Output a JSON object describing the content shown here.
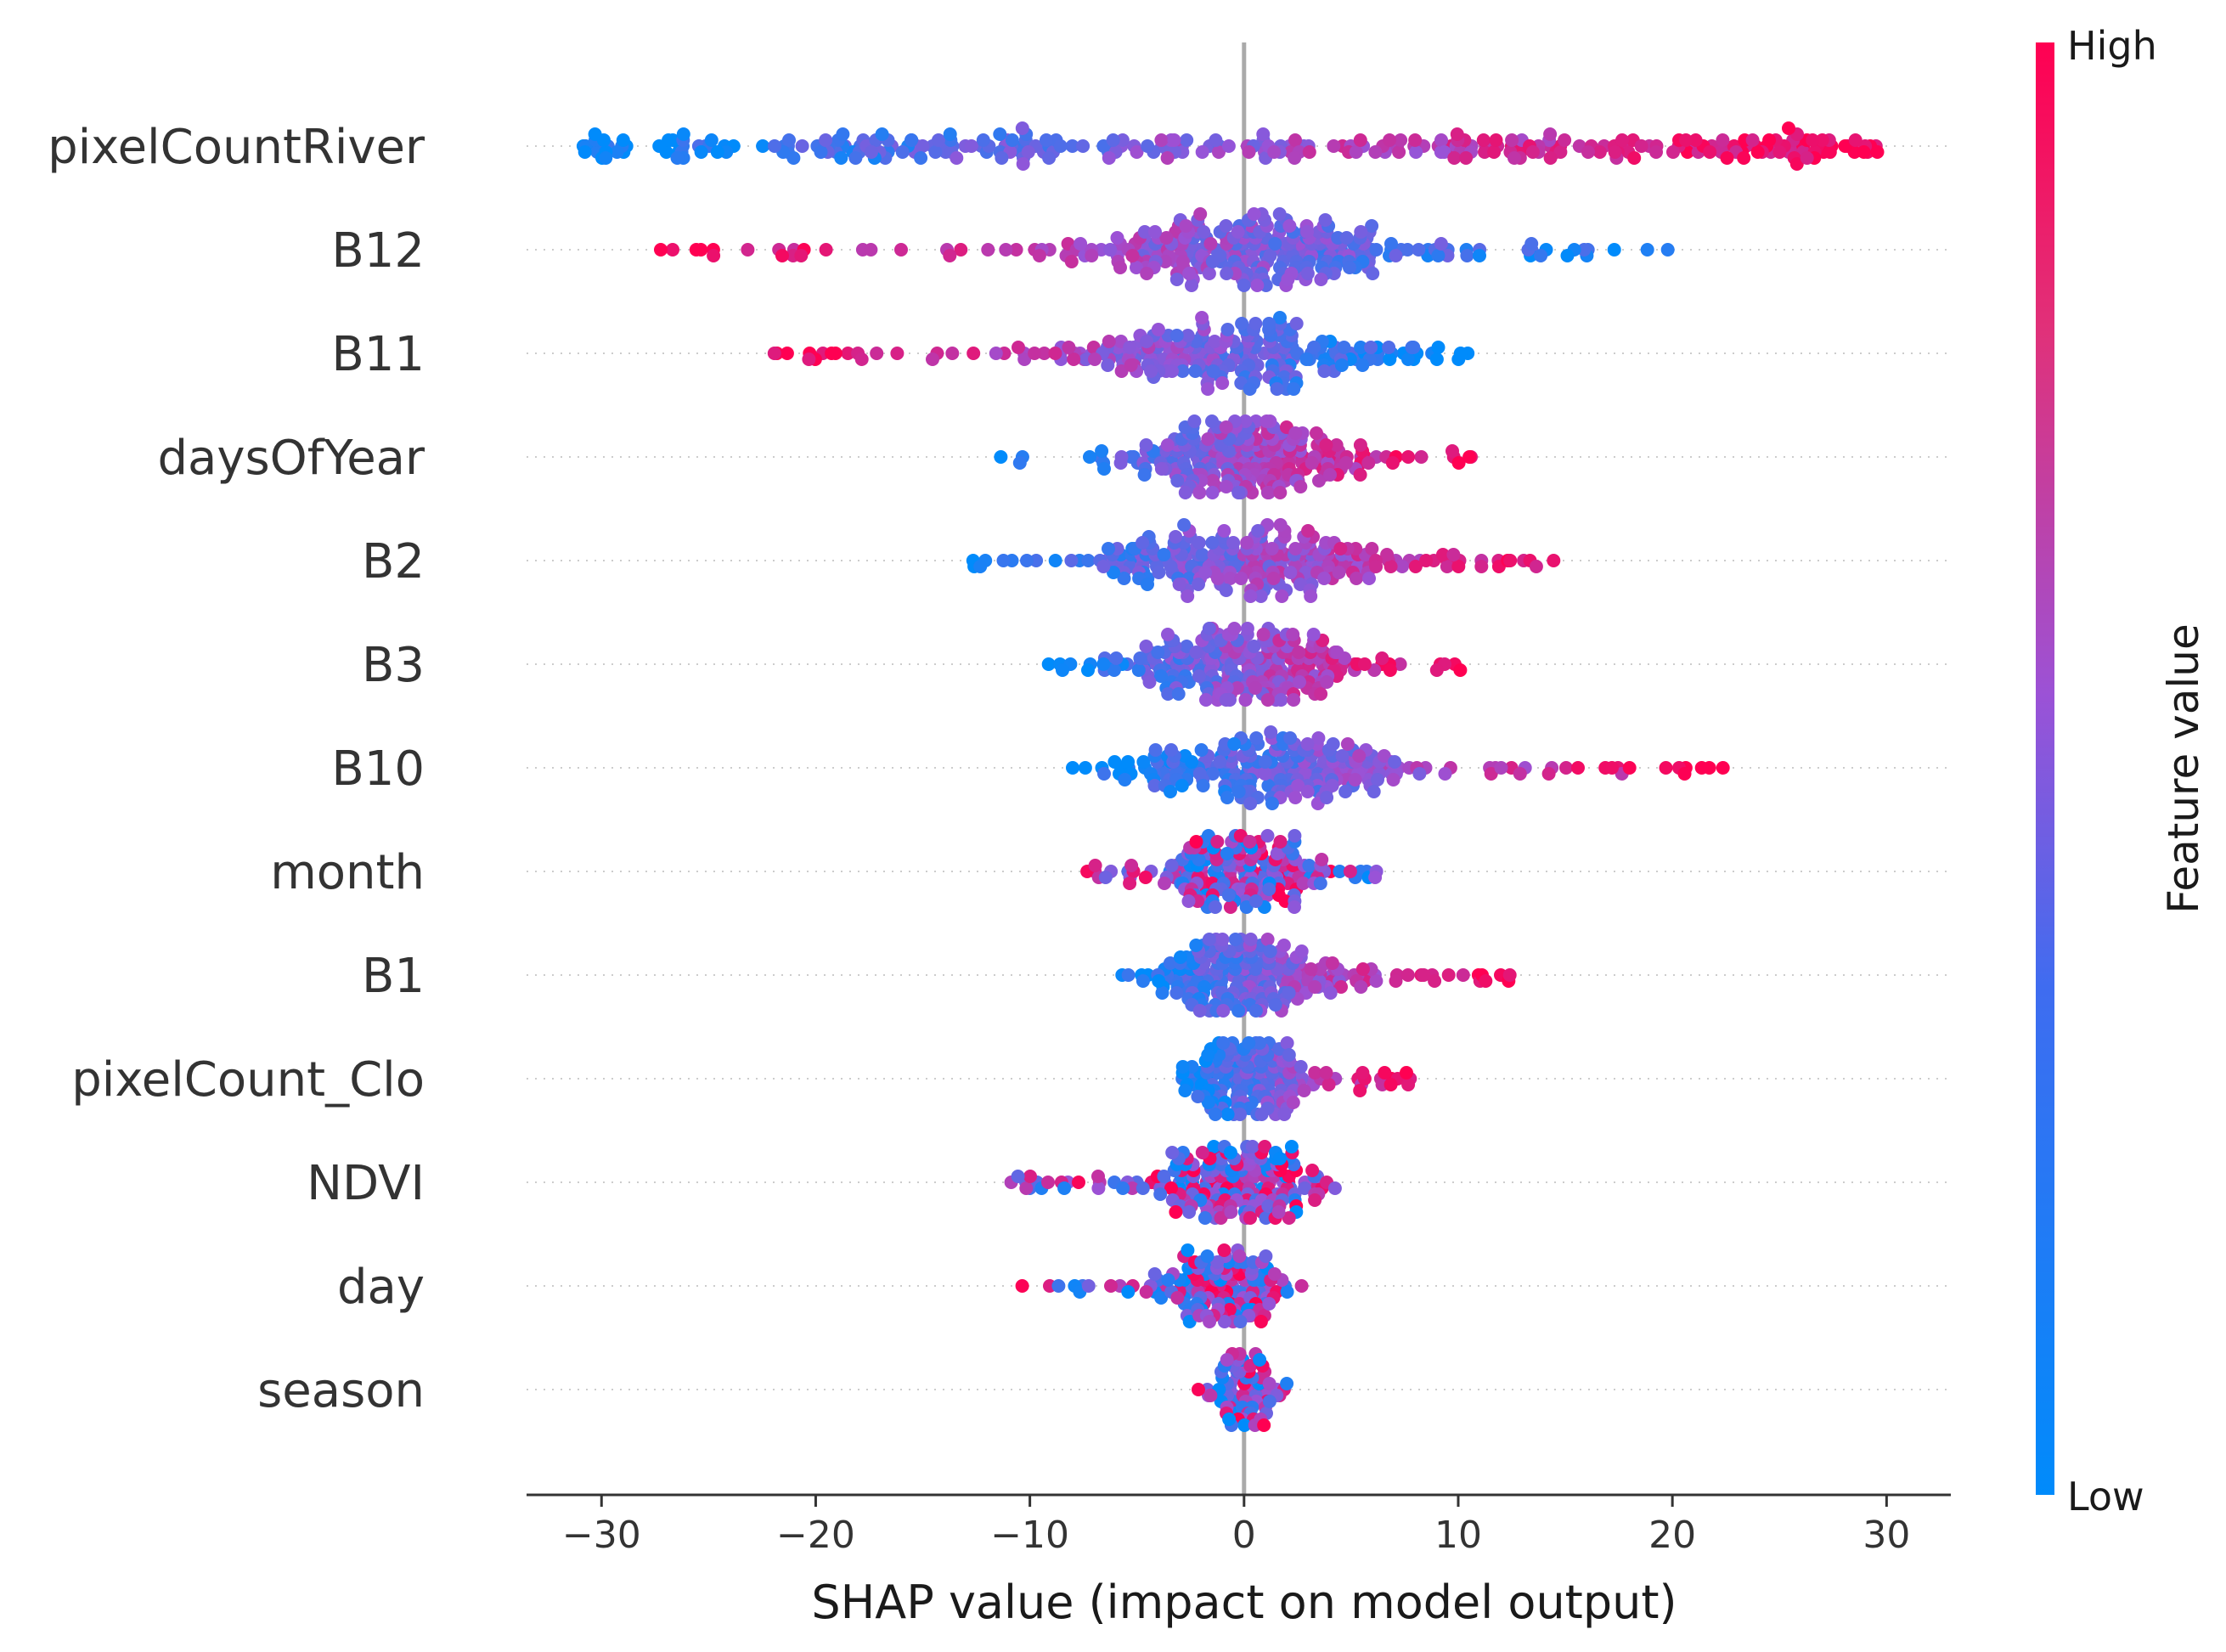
{
  "chart_data": {
    "type": "scatter",
    "subtype": "shap-beeswarm",
    "title": "",
    "xlabel": "SHAP value (impact on model output)",
    "ylabel": "",
    "xlim": [
      -33.5,
      33
    ],
    "xticks": [
      -30,
      -20,
      -10,
      0,
      10,
      20,
      30
    ],
    "xtick_labels": [
      "−30",
      "−20",
      "−10",
      "0",
      "10",
      "20",
      "30"
    ],
    "features": [
      {
        "name": "pixelCountRiver",
        "min": -31,
        "max": 30,
        "count": 320,
        "low_side": "left"
      },
      {
        "name": "B12",
        "min": -27.5,
        "max": 20,
        "count": 300,
        "low_side": "right"
      },
      {
        "name": "B11",
        "min": -22,
        "max": 10.5,
        "count": 250,
        "low_side": "right"
      },
      {
        "name": "daysOfYear",
        "min": -11.5,
        "max": 11,
        "count": 250,
        "low_side": "left"
      },
      {
        "name": "B2",
        "min": -13,
        "max": 15.5,
        "count": 260,
        "low_side": "left"
      },
      {
        "name": "B3",
        "min": -9.5,
        "max": 10.5,
        "count": 250,
        "low_side": "left"
      },
      {
        "name": "B10",
        "min": -8.5,
        "max": 23,
        "count": 240,
        "low_side": "left"
      },
      {
        "name": "month",
        "min": -7.5,
        "max": 6.5,
        "count": 200,
        "low_side": "mixed"
      },
      {
        "name": "B1",
        "min": -6.5,
        "max": 12.5,
        "count": 230,
        "low_side": "left"
      },
      {
        "name": "pixelCount_Clo",
        "min": -3,
        "max": 8,
        "count": 220,
        "low_side": "left"
      },
      {
        "name": "NDVI",
        "min": -11,
        "max": 5.5,
        "count": 230,
        "low_side": "mixed"
      },
      {
        "name": "day",
        "min": -11,
        "max": 3,
        "count": 150,
        "low_side": "mixed"
      },
      {
        "name": "season",
        "min": -2.5,
        "max": 2,
        "count": 110,
        "low_side": "mixed"
      }
    ],
    "colorbar": {
      "title": "Feature value",
      "high_label": "High",
      "low_label": "Low",
      "low_color": "#008bfb",
      "mid_color": "#9b52d6",
      "high_color": "#ff0052"
    },
    "zero_line_color": "#aaaaaa",
    "grid": false
  }
}
